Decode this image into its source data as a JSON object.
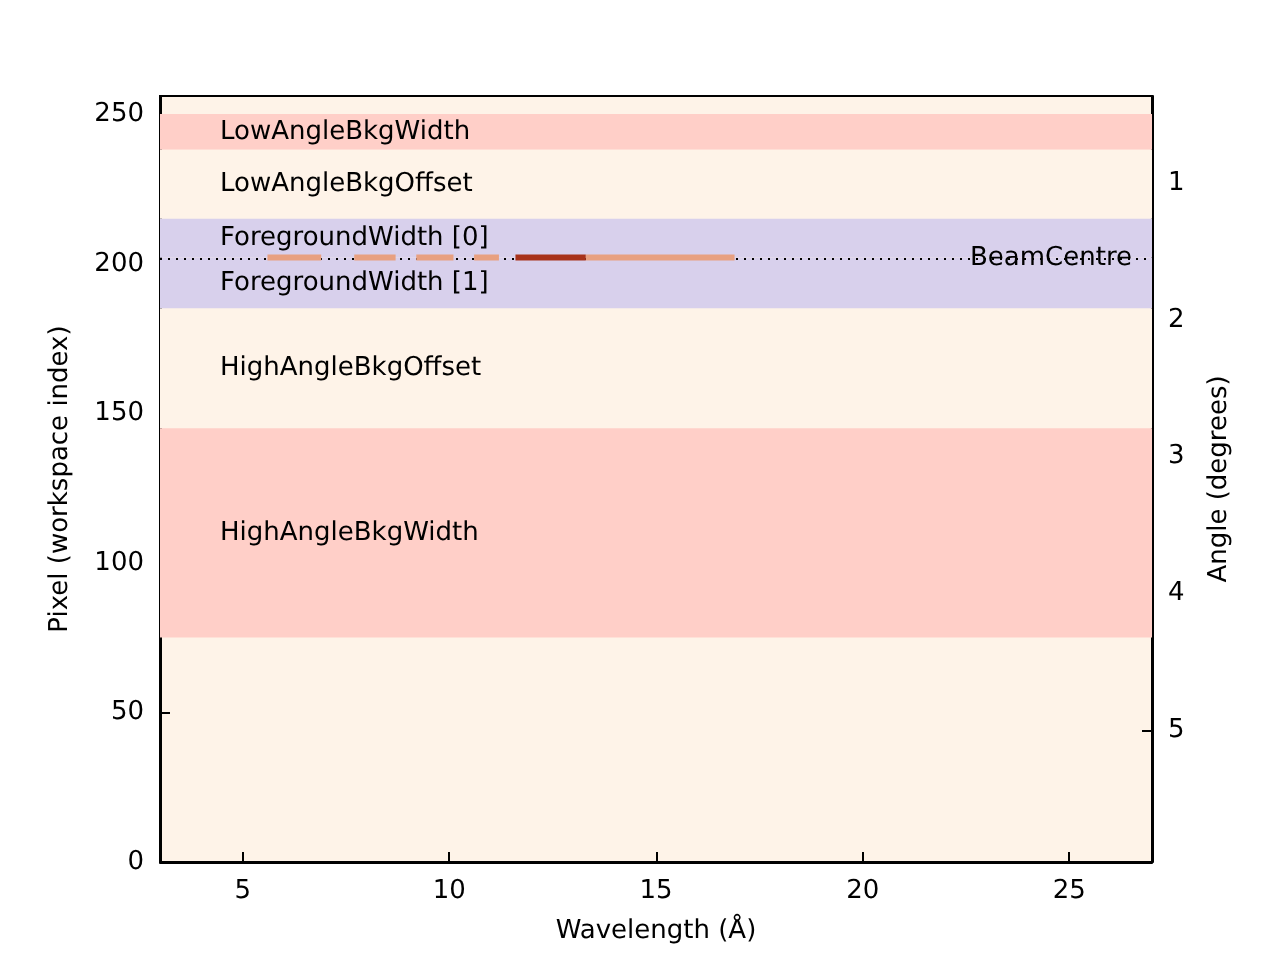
{
  "chart_data": {
    "type": "line",
    "xlabel": "Wavelength (Å)",
    "ylabel": "Pixel (workspace index)",
    "y2label": "Angle (degrees)",
    "xlim": [
      3,
      27
    ],
    "xticks": [
      5,
      10,
      15,
      20,
      25
    ],
    "ylim": [
      0,
      256
    ],
    "yticks": [
      0,
      50,
      100,
      150,
      200,
      250
    ],
    "y2lim": [
      5.97,
      0.36
    ],
    "y2ticks": [
      1,
      2,
      3,
      4,
      5
    ],
    "series": [
      {
        "color": "#e8a080",
        "x": [
          5.6,
          6.9,
          null,
          7.7,
          8.7,
          null,
          9.2,
          10.1,
          null,
          10.6,
          11.2,
          null,
          13.3,
          16.9
        ],
        "values": [
          202,
          202,
          null,
          202,
          202,
          null,
          202,
          202,
          null,
          202,
          202,
          null,
          202,
          202
        ]
      },
      {
        "color": "#a8321a",
        "x": [
          11.6,
          13.3
        ],
        "values": [
          202,
          202
        ]
      }
    ],
    "bands": [
      {
        "axis": "y",
        "from": 238,
        "to": 250,
        "color": "#ffcfc8",
        "label": "LowAngleBkgWidth"
      },
      {
        "axis": "y",
        "from": 215,
        "to": 238,
        "color": "#fef3e8",
        "label": "LowAngleBkgOffset"
      },
      {
        "axis": "y",
        "from": 202,
        "to": 215,
        "color": "#d8d0ec",
        "label": "ForegroundWidth [0]"
      },
      {
        "axis": "y",
        "from": 185,
        "to": 202,
        "color": "#d8d0ec",
        "label": "ForegroundWidth [1]"
      },
      {
        "axis": "y",
        "from": 145,
        "to": 185,
        "color": "#fef3e8",
        "label": "HighAngleBkgOffset"
      },
      {
        "axis": "y",
        "from": 75,
        "to": 145,
        "color": "#ffcfc8",
        "label": "HighAngleBkgWidth"
      }
    ],
    "ref_lines": [
      {
        "axis": "y",
        "value": 202,
        "label": "BeamCentre",
        "line_style": "dotted",
        "color": "#000000"
      }
    ],
    "grid": false
  }
}
